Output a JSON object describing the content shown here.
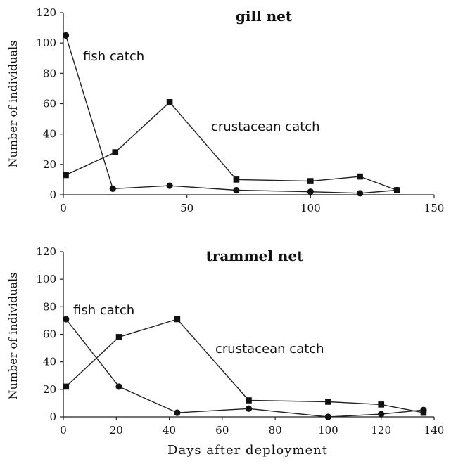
{
  "chart_data": [
    {
      "type": "line",
      "title": "gill net",
      "xlabel": "",
      "ylabel": "Number of individuals",
      "xlim": [
        0,
        150
      ],
      "ylim": [
        0,
        120
      ],
      "xticks": [
        0,
        50,
        100,
        150
      ],
      "yticks": [
        0,
        20,
        40,
        60,
        80,
        100,
        120
      ],
      "grid": false,
      "series": [
        {
          "name": "fish catch",
          "marker": "circle",
          "points": [
            [
              1,
              105
            ],
            [
              20,
              4
            ],
            [
              43,
              6
            ],
            [
              70,
              3
            ],
            [
              100,
              2
            ],
            [
              120,
              1
            ],
            [
              135,
              3
            ]
          ]
        },
        {
          "name": "crustacean catch",
          "marker": "square",
          "points": [
            [
              1,
              13
            ],
            [
              21,
              28
            ],
            [
              43,
              61
            ],
            [
              70,
              10
            ],
            [
              100,
              9
            ],
            [
              120,
              12
            ],
            [
              135,
              3
            ]
          ]
        }
      ]
    },
    {
      "type": "line",
      "title": "trammel net",
      "xlabel": "Days after deployment",
      "ylabel": "Number of individuals",
      "xlim": [
        0,
        140
      ],
      "ylim": [
        0,
        120
      ],
      "xticks": [
        0,
        20,
        40,
        60,
        80,
        100,
        120,
        140
      ],
      "yticks": [
        0,
        20,
        40,
        60,
        80,
        100,
        120
      ],
      "grid": false,
      "series": [
        {
          "name": "fish catch",
          "marker": "circle",
          "points": [
            [
              1,
              71
            ],
            [
              21,
              22
            ],
            [
              43,
              3
            ],
            [
              70,
              6
            ],
            [
              100,
              0
            ],
            [
              120,
              2
            ],
            [
              136,
              5
            ]
          ]
        },
        {
          "name": "crustacean catch",
          "marker": "square",
          "points": [
            [
              1,
              22
            ],
            [
              21,
              58
            ],
            [
              43,
              71
            ],
            [
              70,
              12
            ],
            [
              100,
              11
            ],
            [
              120,
              9
            ],
            [
              136,
              3
            ]
          ]
        }
      ]
    }
  ]
}
